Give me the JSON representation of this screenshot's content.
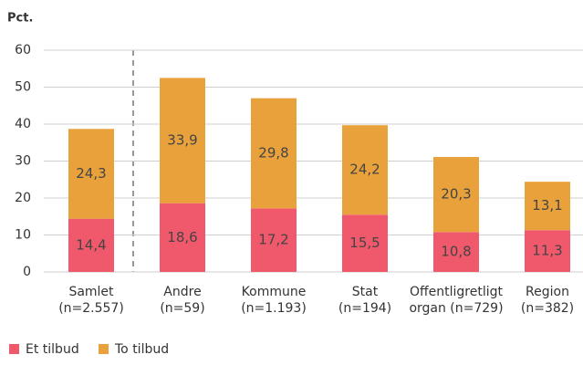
{
  "chart_data": {
    "type": "stacked_bar",
    "y_label": "Pct.",
    "categories": [
      [
        "Samlet",
        "(n=2.557)"
      ],
      [
        "Andre",
        "(n=59)"
      ],
      [
        "Kommune",
        "(n=1.193)"
      ],
      [
        "Stat",
        "(n=194)"
      ],
      [
        "Offentligretligt",
        "organ (n=729)"
      ],
      [
        "Region",
        "(n=382)"
      ]
    ],
    "series": [
      {
        "name": "Et tilbud",
        "color": "#f0586b",
        "values": [
          14.4,
          18.6,
          17.2,
          15.5,
          10.8,
          11.3
        ],
        "value_labels": [
          "14,4",
          "18,6",
          "17,2",
          "15,5",
          "10,8",
          "11,3"
        ]
      },
      {
        "name": "To tilbud",
        "color": "#e9a23b",
        "values": [
          24.3,
          33.9,
          29.8,
          24.2,
          20.3,
          13.1
        ],
        "value_labels": [
          "24,3",
          "33,9",
          "29,8",
          "24,2",
          "20,3",
          "13,1"
        ]
      }
    ],
    "ylim": [
      0,
      60
    ],
    "yticks": [
      0,
      10,
      20,
      30,
      40,
      50,
      60
    ],
    "grid": true
  }
}
